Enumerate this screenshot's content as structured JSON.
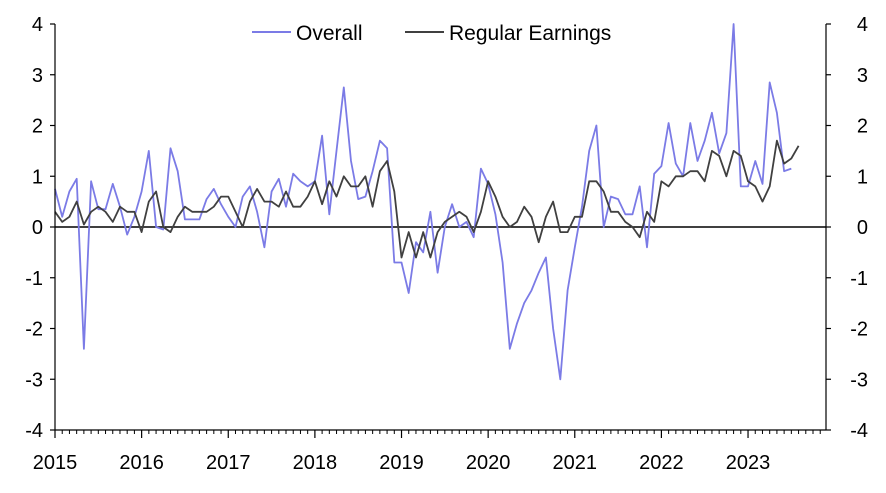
{
  "colors": {
    "overall": "#7b7be6",
    "regular": "#404040",
    "axis": "#000000"
  },
  "chart_data": {
    "type": "line",
    "title": "",
    "xlabel": "",
    "ylabel": "",
    "ylim": [
      -4,
      4
    ],
    "xlim": [
      2015.0,
      2023.9
    ],
    "y_ticks": [
      -4,
      -3,
      -2,
      -1,
      0,
      1,
      2,
      3,
      4
    ],
    "y_tick_labels": [
      "-4",
      "-3",
      "-2",
      "-1",
      "0",
      "1",
      "2",
      "3",
      "4"
    ],
    "x_ticks": [
      2015,
      2016,
      2017,
      2018,
      2019,
      2020,
      2021,
      2022,
      2023
    ],
    "x_tick_labels": [
      "2015",
      "2016",
      "2017",
      "2018",
      "2019",
      "2020",
      "2021",
      "2022",
      "2023"
    ],
    "legend_position": "top-center",
    "frequency": "monthly",
    "x_start": "2015-01",
    "series": [
      {
        "name": "Overall",
        "color_key": "overall",
        "values": [
          0.75,
          0.2,
          0.7,
          0.95,
          -2.4,
          0.9,
          0.35,
          0.35,
          0.85,
          0.4,
          -0.15,
          0.2,
          0.7,
          1.5,
          0.0,
          -0.05,
          1.55,
          1.1,
          0.15,
          0.15,
          0.15,
          0.55,
          0.75,
          0.45,
          0.2,
          0.0,
          0.6,
          0.8,
          0.3,
          -0.4,
          0.7,
          0.95,
          0.4,
          1.05,
          0.9,
          0.8,
          0.9,
          1.8,
          0.25,
          1.5,
          2.75,
          1.3,
          0.55,
          0.6,
          1.1,
          1.7,
          1.55,
          -0.7,
          -0.7,
          -1.3,
          -0.3,
          -0.5,
          0.3,
          -0.9,
          0.0,
          0.45,
          0.0,
          0.1,
          -0.2,
          1.15,
          0.85,
          0.25,
          -0.7,
          -2.4,
          -1.9,
          -1.5,
          -1.25,
          -0.9,
          -0.6,
          -2.0,
          -3.0,
          -1.25,
          -0.4,
          0.4,
          1.5,
          2.0,
          0.0,
          0.6,
          0.55,
          0.25,
          0.25,
          0.8,
          -0.4,
          1.05,
          1.2,
          2.05,
          1.25,
          1.0,
          2.05,
          1.3,
          1.7,
          2.25,
          1.45,
          1.85,
          4.0,
          0.8,
          0.8,
          1.3,
          0.85,
          2.85,
          2.25,
          1.1,
          1.15
        ]
      },
      {
        "name": "Regular Earnings",
        "color_key": "regular",
        "values": [
          0.3,
          0.1,
          0.2,
          0.5,
          0.05,
          0.3,
          0.4,
          0.3,
          0.1,
          0.4,
          0.3,
          0.3,
          -0.1,
          0.5,
          0.7,
          0.0,
          -0.1,
          0.2,
          0.4,
          0.3,
          0.3,
          0.3,
          0.4,
          0.6,
          0.6,
          0.3,
          0.0,
          0.5,
          0.75,
          0.5,
          0.5,
          0.4,
          0.7,
          0.4,
          0.4,
          0.6,
          0.9,
          0.45,
          0.9,
          0.6,
          1.0,
          0.8,
          0.8,
          1.0,
          0.4,
          1.1,
          1.3,
          0.7,
          -0.6,
          -0.1,
          -0.6,
          -0.1,
          -0.6,
          -0.1,
          0.1,
          0.2,
          0.3,
          0.2,
          -0.1,
          0.3,
          0.9,
          0.6,
          0.2,
          0.0,
          0.1,
          0.4,
          0.2,
          -0.3,
          0.2,
          0.5,
          -0.1,
          -0.1,
          0.2,
          0.2,
          0.9,
          0.9,
          0.7,
          0.3,
          0.3,
          0.1,
          0.0,
          -0.2,
          0.3,
          0.1,
          0.9,
          0.8,
          1.0,
          1.0,
          1.1,
          1.1,
          0.9,
          1.5,
          1.4,
          1.0,
          1.5,
          1.4,
          0.9,
          0.8,
          0.5,
          0.8,
          1.7,
          1.25,
          1.35,
          1.6
        ]
      }
    ]
  }
}
